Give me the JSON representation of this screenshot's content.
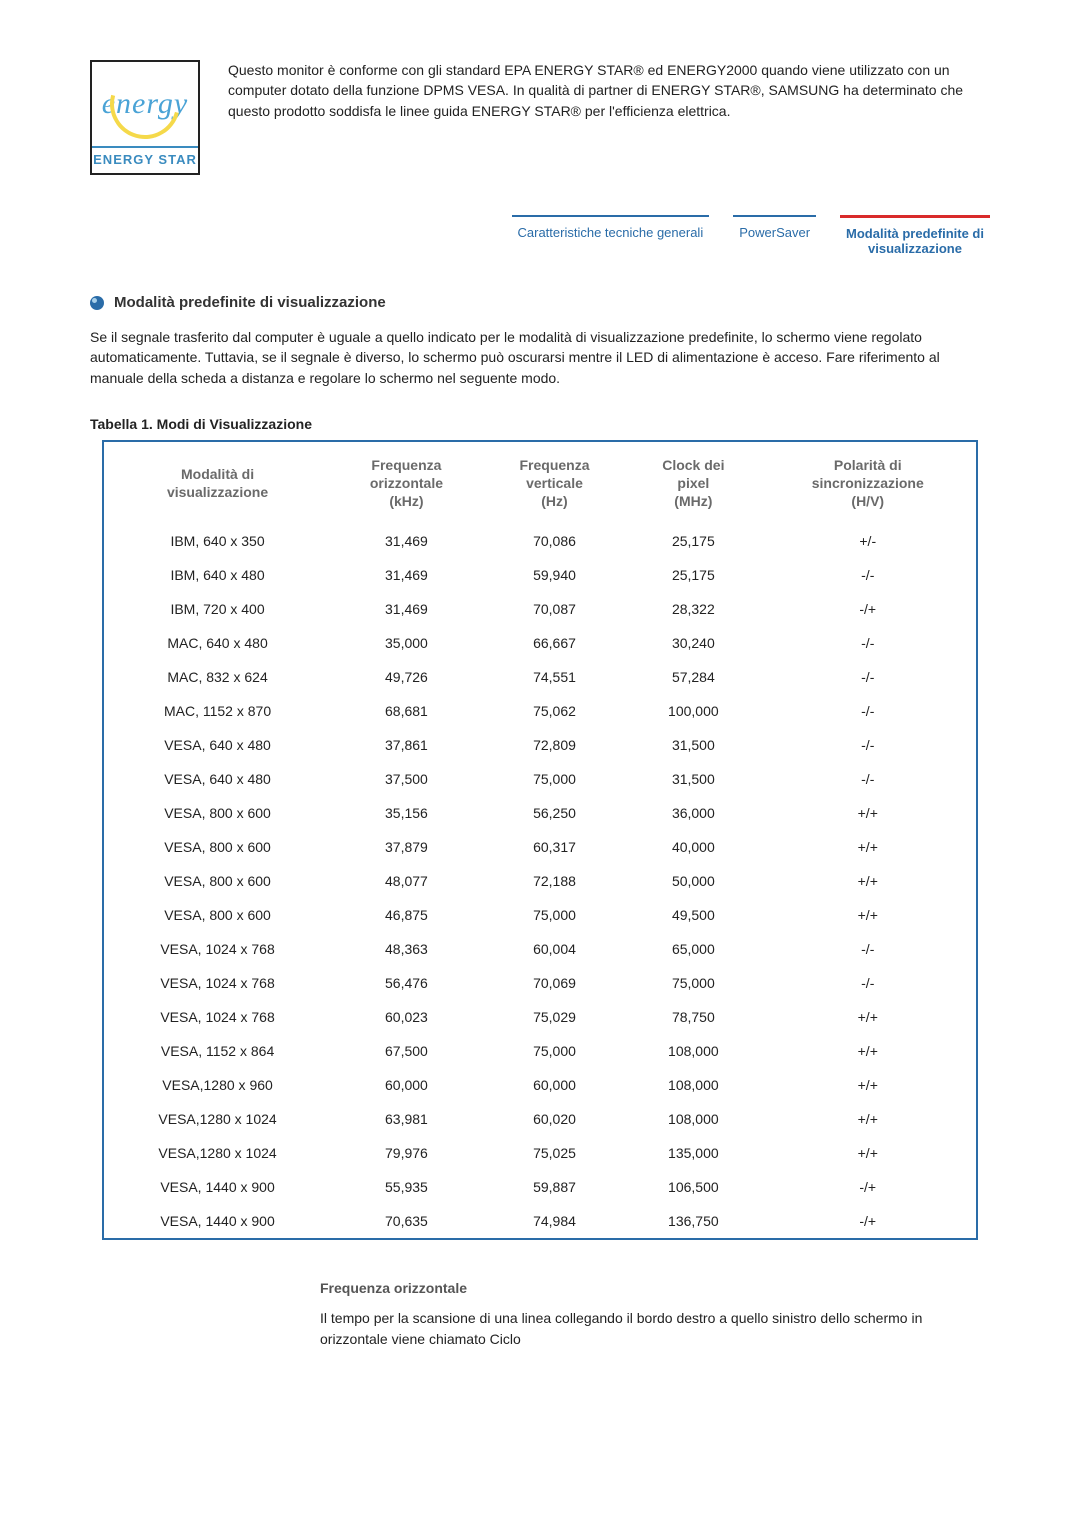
{
  "energy_logo": {
    "cursive": "energy",
    "label": "ENERGY STAR"
  },
  "intro_text": "Questo monitor è conforme con gli standard EPA ENERGY STAR® ed ENERGY2000 quando viene utilizzato con un computer dotato della funzione DPMS VESA. In qualità di partner di ENERGY STAR®, SAMSUNG ha determinato che questo prodotto soddisfa le linee guida ENERGY STAR® per l'efficienza elettrica.",
  "tabs": {
    "item0": "Caratteristiche tecniche generali",
    "item1": "PowerSaver",
    "item2_line1": "Modalità predefinite di",
    "item2_line2": "visualizzazione"
  },
  "section_title": "Modalità predefinite di visualizzazione",
  "body_text": "Se il segnale trasferito dal computer è uguale a quello indicato per le modalità di visualizzazione predefinite, lo schermo viene regolato automaticamente. Tuttavia, se il segnale è diverso, lo schermo può oscurarsi mentre il LED di alimentazione è acceso. Fare riferimento al manuale della scheda a distanza e regolare lo schermo nel seguente modo.",
  "table_caption": "Tabella 1. Modi di Visualizzazione",
  "table_headers": {
    "c0a": "Modalità di",
    "c0b": "visualizzazione",
    "c1a": "Frequenza",
    "c1b": "orizzontale",
    "c1c": "(kHz)",
    "c2a": "Frequenza",
    "c2b": "verticale",
    "c2c": "(Hz)",
    "c3a": "Clock dei",
    "c3b": "pixel",
    "c3c": "(MHz)",
    "c4a": "Polarità di",
    "c4b": "sincronizzazione",
    "c4c": "(H/V)"
  },
  "rows": [
    {
      "mode": "IBM, 640 x 350",
      "hf": "31,469",
      "vf": "70,086",
      "clk": "25,175",
      "pol": "+/-"
    },
    {
      "mode": "IBM, 640 x 480",
      "hf": "31,469",
      "vf": "59,940",
      "clk": "25,175",
      "pol": "-/-"
    },
    {
      "mode": "IBM, 720 x 400",
      "hf": "31,469",
      "vf": "70,087",
      "clk": "28,322",
      "pol": "-/+"
    },
    {
      "mode": "MAC, 640 x 480",
      "hf": "35,000",
      "vf": "66,667",
      "clk": "30,240",
      "pol": "-/-"
    },
    {
      "mode": "MAC, 832 x 624",
      "hf": "49,726",
      "vf": "74,551",
      "clk": "57,284",
      "pol": "-/-"
    },
    {
      "mode": "MAC, 1152 x 870",
      "hf": "68,681",
      "vf": "75,062",
      "clk": "100,000",
      "pol": "-/-"
    },
    {
      "mode": "VESA, 640 x 480",
      "hf": "37,861",
      "vf": "72,809",
      "clk": "31,500",
      "pol": "-/-"
    },
    {
      "mode": "VESA, 640 x 480",
      "hf": "37,500",
      "vf": "75,000",
      "clk": "31,500",
      "pol": "-/-"
    },
    {
      "mode": "VESA, 800 x 600",
      "hf": "35,156",
      "vf": "56,250",
      "clk": "36,000",
      "pol": "+/+"
    },
    {
      "mode": "VESA, 800 x 600",
      "hf": "37,879",
      "vf": "60,317",
      "clk": "40,000",
      "pol": "+/+"
    },
    {
      "mode": "VESA, 800 x 600",
      "hf": "48,077",
      "vf": "72,188",
      "clk": "50,000",
      "pol": "+/+"
    },
    {
      "mode": "VESA, 800 x 600",
      "hf": "46,875",
      "vf": "75,000",
      "clk": "49,500",
      "pol": "+/+"
    },
    {
      "mode": "VESA, 1024 x 768",
      "hf": "48,363",
      "vf": "60,004",
      "clk": "65,000",
      "pol": "-/-"
    },
    {
      "mode": "VESA, 1024 x 768",
      "hf": "56,476",
      "vf": "70,069",
      "clk": "75,000",
      "pol": "-/-"
    },
    {
      "mode": "VESA, 1024 x 768",
      "hf": "60,023",
      "vf": "75,029",
      "clk": "78,750",
      "pol": "+/+"
    },
    {
      "mode": "VESA, 1152 x 864",
      "hf": "67,500",
      "vf": "75,000",
      "clk": "108,000",
      "pol": "+/+"
    },
    {
      "mode": "VESA,1280 x 960",
      "hf": "60,000",
      "vf": "60,000",
      "clk": "108,000",
      "pol": "+/+"
    },
    {
      "mode": "VESA,1280 x 1024",
      "hf": "63,981",
      "vf": "60,020",
      "clk": "108,000",
      "pol": "+/+"
    },
    {
      "mode": "VESA,1280 x 1024",
      "hf": "79,976",
      "vf": "75,025",
      "clk": "135,000",
      "pol": "+/+"
    },
    {
      "mode": "VESA, 1440 x 900",
      "hf": "55,935",
      "vf": "59,887",
      "clk": "106,500",
      "pol": "-/+"
    },
    {
      "mode": "VESA, 1440 x 900",
      "hf": "70,635",
      "vf": "74,984",
      "clk": "136,750",
      "pol": "-/+"
    }
  ],
  "freq": {
    "title": "Frequenza orizzontale",
    "text": "Il tempo per la scansione di una linea collegando il bordo destro a quello sinistro dello schermo in orizzontale viene chiamato Ciclo"
  }
}
